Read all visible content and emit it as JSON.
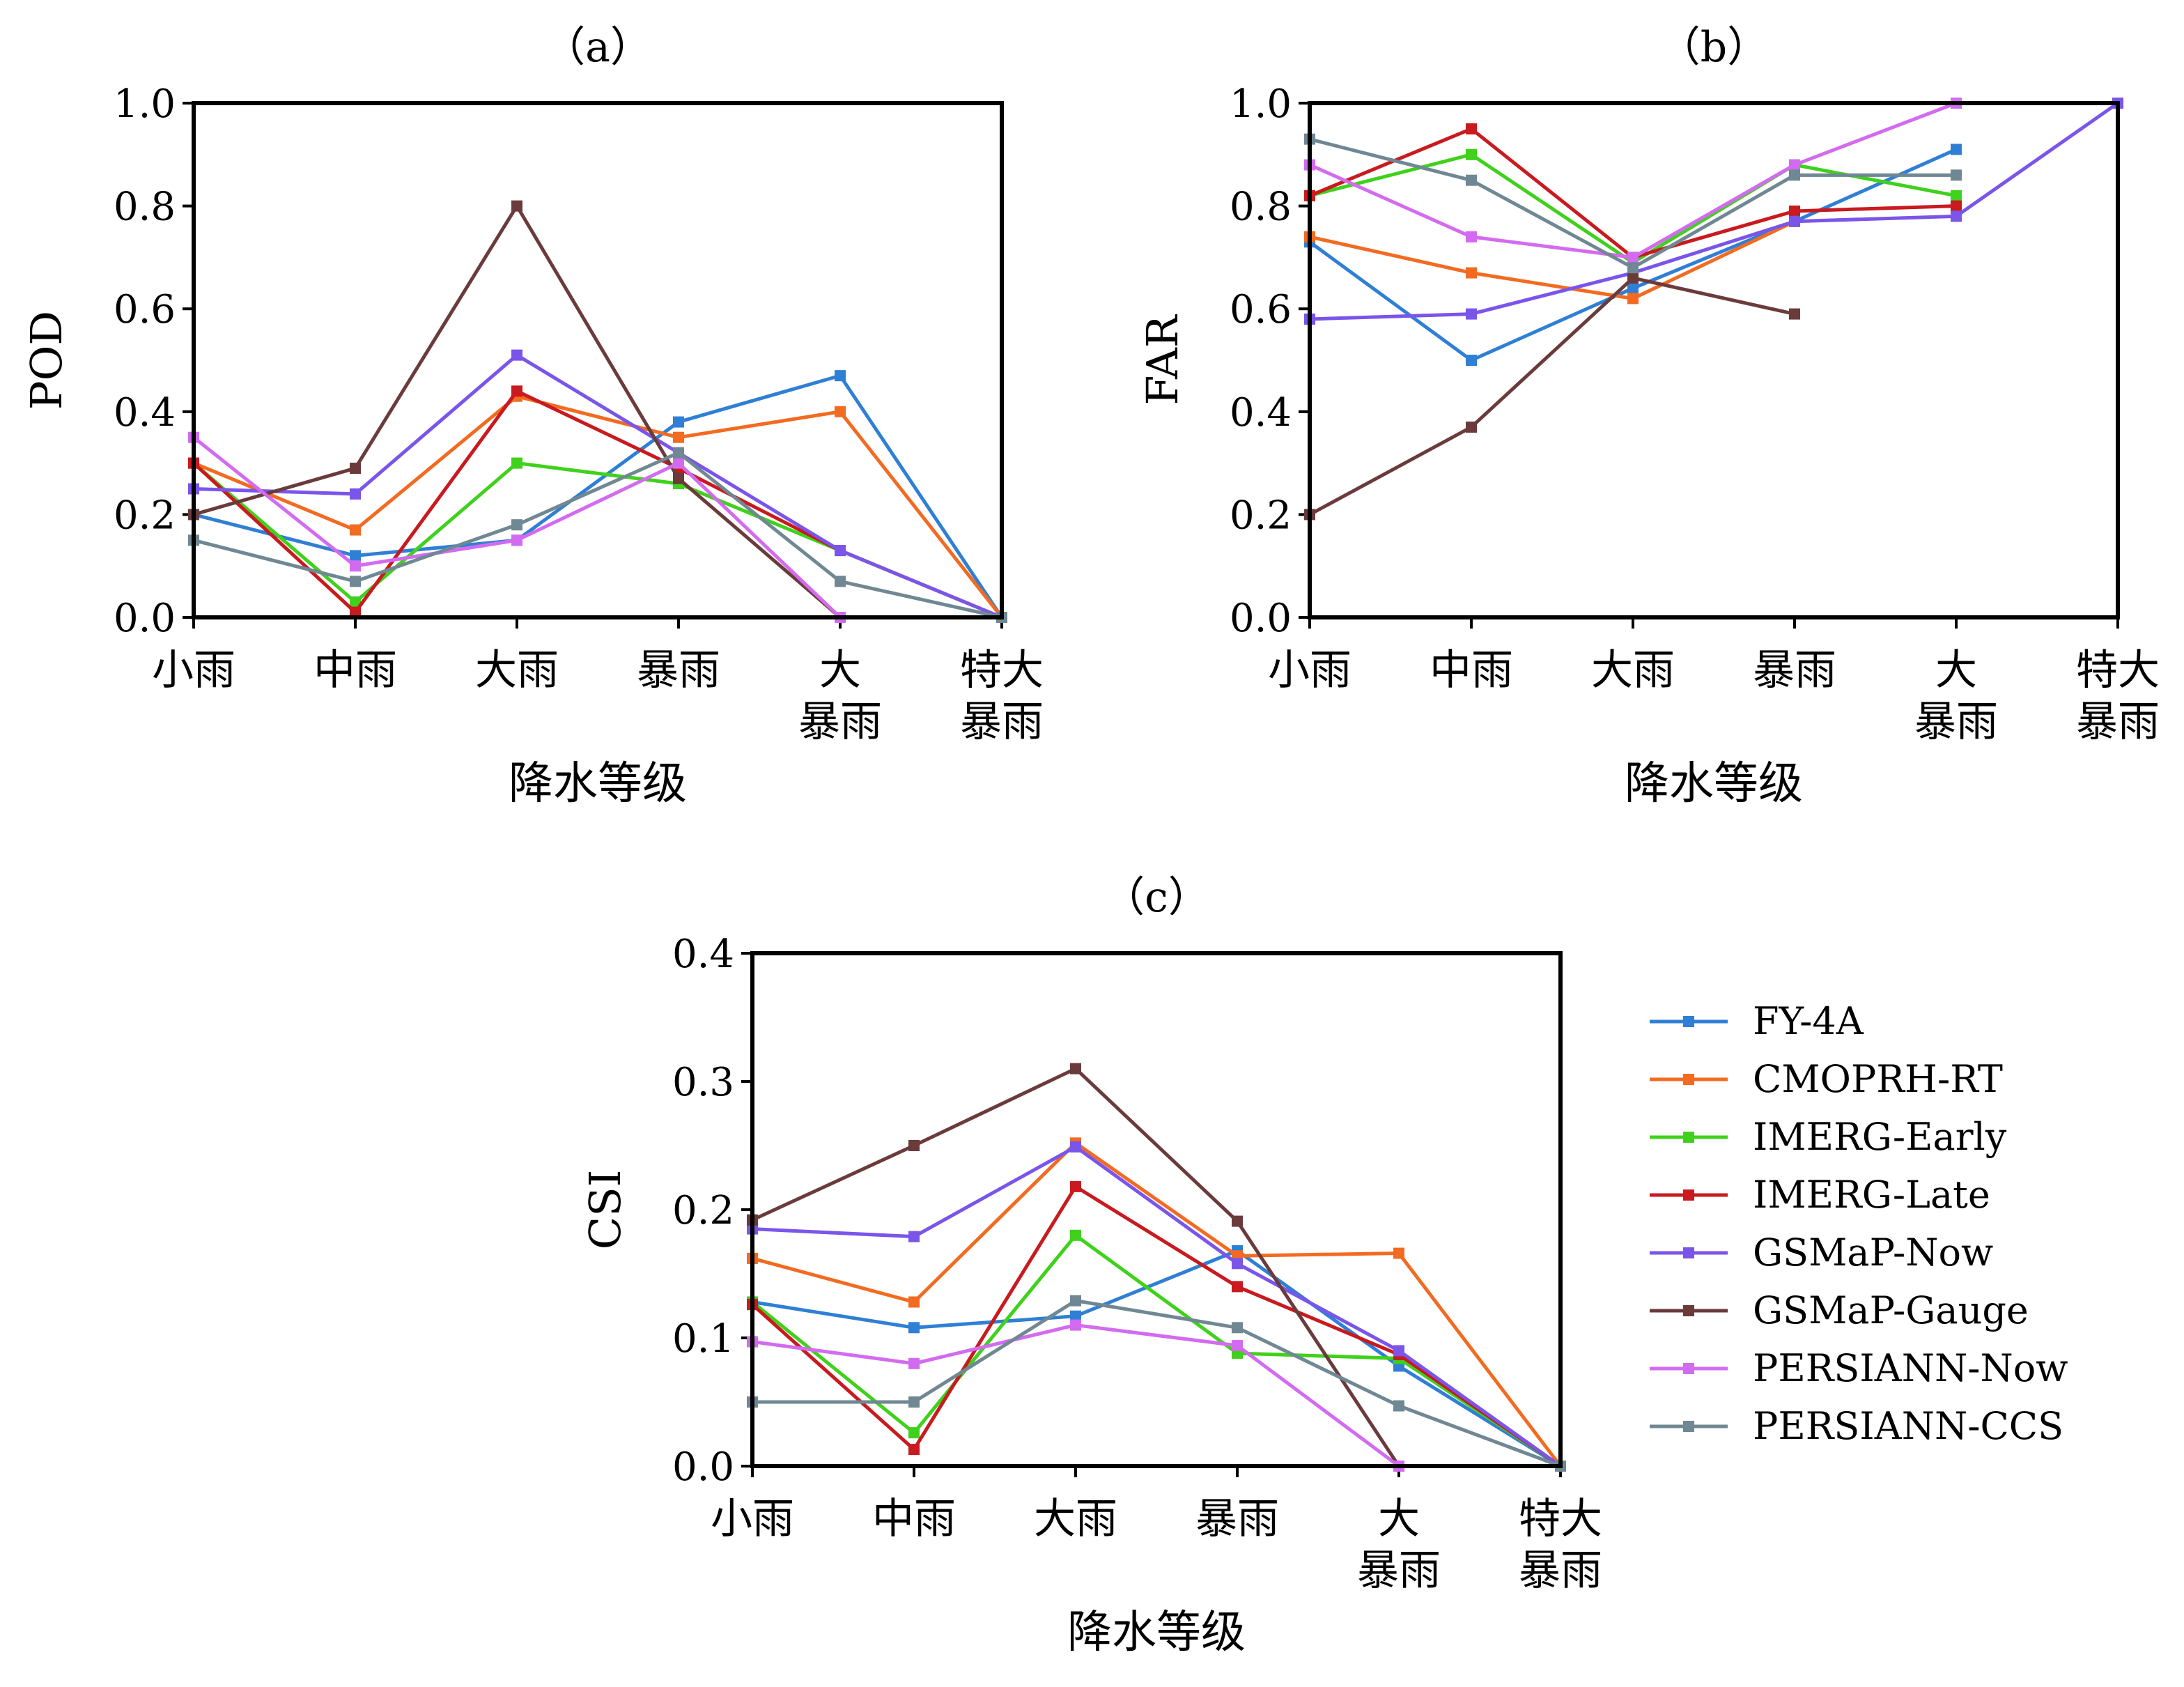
{
  "legend": {
    "entries": [
      {
        "name": "FY-4A",
        "color": "#2f7fd5"
      },
      {
        "name": "CMOPRH-RT",
        "color": "#f26b21"
      },
      {
        "name": "IMERG-Early",
        "color": "#3fd11b"
      },
      {
        "name": "IMERG-Late",
        "color": "#c81a1f"
      },
      {
        "name": "GSMaP-Now",
        "color": "#7a55ea"
      },
      {
        "name": "GSMaP-Gauge",
        "color": "#6b3b3b"
      },
      {
        "name": "PERSIANN-Now",
        "color": "#d36bf0"
      },
      {
        "name": "PERSIANN-CCS",
        "color": "#6f8893"
      }
    ]
  },
  "chart_data": [
    {
      "type": "line",
      "title": "（a）",
      "ylabel": "POD",
      "xlabel": "降水等级",
      "categories": [
        "小雨",
        "中雨",
        "大雨",
        "暴雨",
        "大\n暴雨",
        "特大\n暴雨"
      ],
      "ylim": [
        0,
        1.0
      ],
      "yticks": [
        "0.0",
        "0.2",
        "0.4",
        "0.6",
        "0.8",
        "1.0"
      ],
      "series": [
        {
          "name": "FY-4A",
          "values": [
            0.2,
            0.12,
            0.15,
            0.38,
            0.47,
            0.0
          ]
        },
        {
          "name": "CMOPRH-RT",
          "values": [
            0.3,
            0.17,
            0.43,
            0.35,
            0.4,
            0.0
          ]
        },
        {
          "name": "IMERG-Early",
          "values": [
            0.3,
            0.03,
            0.3,
            0.26,
            0.13,
            0.0
          ]
        },
        {
          "name": "IMERG-Late",
          "values": [
            0.3,
            0.01,
            0.44,
            0.29,
            0.13,
            0.0
          ]
        },
        {
          "name": "GSMaP-Now",
          "values": [
            0.25,
            0.24,
            0.51,
            0.32,
            0.13,
            0.0
          ]
        },
        {
          "name": "GSMaP-Gauge",
          "values": [
            0.2,
            0.29,
            0.8,
            0.27,
            0.0,
            null
          ]
        },
        {
          "name": "PERSIANN-Now",
          "values": [
            0.35,
            0.1,
            0.15,
            0.3,
            0.0,
            null
          ]
        },
        {
          "name": "PERSIANN-CCS",
          "values": [
            0.15,
            0.07,
            0.18,
            0.32,
            0.07,
            0.0
          ]
        }
      ]
    },
    {
      "type": "line",
      "title": "（b）",
      "ylabel": "FAR",
      "xlabel": "降水等级",
      "categories": [
        "小雨",
        "中雨",
        "大雨",
        "暴雨",
        "大\n暴雨",
        "特大\n暴雨"
      ],
      "ylim": [
        0,
        1.0
      ],
      "yticks": [
        "0.0",
        "0.2",
        "0.4",
        "0.6",
        "0.8",
        "1.0"
      ],
      "series": [
        {
          "name": "FY-4A",
          "values": [
            0.73,
            0.5,
            0.64,
            0.77,
            0.91,
            null
          ]
        },
        {
          "name": "CMOPRH-RT",
          "values": [
            0.74,
            0.67,
            0.62,
            0.77,
            null,
            null
          ]
        },
        {
          "name": "IMERG-Early",
          "values": [
            0.82,
            0.9,
            0.69,
            0.88,
            0.82,
            null
          ]
        },
        {
          "name": "IMERG-Late",
          "values": [
            0.82,
            0.95,
            0.7,
            0.79,
            0.8,
            null
          ]
        },
        {
          "name": "GSMaP-Now",
          "values": [
            0.58,
            0.59,
            0.67,
            0.77,
            0.78,
            1.0
          ]
        },
        {
          "name": "GSMaP-Gauge",
          "values": [
            0.2,
            0.37,
            0.66,
            0.59,
            null,
            null
          ]
        },
        {
          "name": "PERSIANN-Now",
          "values": [
            0.88,
            0.74,
            0.7,
            0.88,
            1.0,
            null
          ]
        },
        {
          "name": "PERSIANN-CCS",
          "values": [
            0.93,
            0.85,
            0.68,
            0.86,
            0.86,
            null
          ]
        }
      ]
    },
    {
      "type": "line",
      "title": "（c）",
      "ylabel": "CSI",
      "xlabel": "降水等级",
      "categories": [
        "小雨",
        "中雨",
        "大雨",
        "暴雨",
        "大\n暴雨",
        "特大\n暴雨"
      ],
      "ylim": [
        0,
        0.4
      ],
      "yticks": [
        "0.0",
        "0.1",
        "0.2",
        "0.3",
        "0.4"
      ],
      "series": [
        {
          "name": "FY-4A",
          "values": [
            0.128,
            0.108,
            0.117,
            0.168,
            0.078,
            0.0
          ]
        },
        {
          "name": "CMOPRH-RT",
          "values": [
            0.162,
            0.128,
            0.252,
            0.164,
            0.166,
            0.0
          ]
        },
        {
          "name": "IMERG-Early",
          "values": [
            0.128,
            0.026,
            0.18,
            0.088,
            0.084,
            0.0
          ]
        },
        {
          "name": "IMERG-Late",
          "values": [
            0.126,
            0.013,
            0.218,
            0.14,
            0.087,
            0.0
          ]
        },
        {
          "name": "GSMaP-Now",
          "values": [
            0.185,
            0.179,
            0.249,
            0.158,
            0.09,
            0.0
          ]
        },
        {
          "name": "GSMaP-Gauge",
          "values": [
            0.192,
            0.25,
            0.31,
            0.191,
            0.0,
            null
          ]
        },
        {
          "name": "PERSIANN-Now",
          "values": [
            0.097,
            0.08,
            0.11,
            0.094,
            0.0,
            null
          ]
        },
        {
          "name": "PERSIANN-CCS",
          "values": [
            0.05,
            0.05,
            0.129,
            0.108,
            0.047,
            0.0
          ]
        }
      ]
    }
  ]
}
